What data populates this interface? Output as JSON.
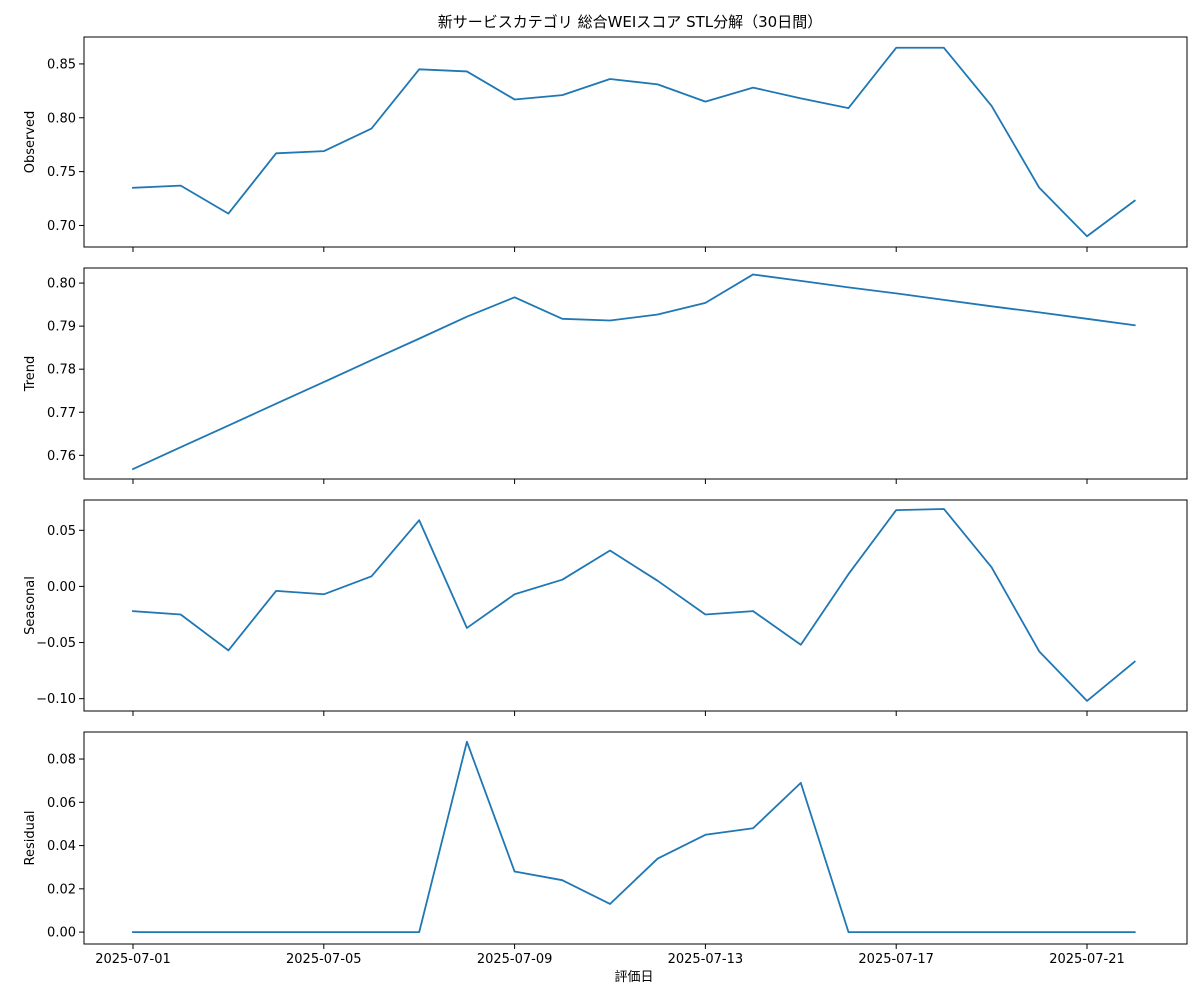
{
  "chart_data": {
    "type": "line",
    "title": "新サービスカテゴリ 総合WEIスコア STL分解（30日間）",
    "xlabel": "評価日",
    "line_color": "#1f77b4",
    "x": [
      "2025-07-01",
      "2025-07-02",
      "2025-07-03",
      "2025-07-04",
      "2025-07-05",
      "2025-07-06",
      "2025-07-07",
      "2025-07-08",
      "2025-07-09",
      "2025-07-10",
      "2025-07-11",
      "2025-07-12",
      "2025-07-13",
      "2025-07-14",
      "2025-07-15",
      "2025-07-16",
      "2025-07-17",
      "2025-07-18",
      "2025-07-19",
      "2025-07-20",
      "2025-07-21",
      "2025-07-22"
    ],
    "x_ticks": [
      "2025-07-01",
      "2025-07-05",
      "2025-07-09",
      "2025-07-13",
      "2025-07-17",
      "2025-07-21"
    ],
    "panels": [
      {
        "ylabel": "Observed",
        "ylim": [
          0.68,
          0.875
        ],
        "yticks": [
          0.7,
          0.75,
          0.8,
          0.85
        ],
        "ytick_labels": [
          "0.70",
          "0.75",
          "0.80",
          "0.85"
        ],
        "values": [
          0.735,
          0.737,
          0.711,
          0.767,
          0.769,
          0.79,
          0.845,
          0.843,
          0.817,
          0.821,
          0.836,
          0.831,
          0.815,
          0.828,
          0.818,
          0.809,
          0.865,
          0.865,
          0.811,
          0.735,
          0.69,
          0.723
        ]
      },
      {
        "ylabel": "Trend",
        "ylim": [
          0.7545,
          0.8035
        ],
        "yticks": [
          0.76,
          0.77,
          0.78,
          0.79,
          0.8
        ],
        "ytick_labels": [
          "0.76",
          "0.77",
          "0.78",
          "0.79",
          "0.80"
        ],
        "values": [
          0.7568,
          0.7619,
          0.7669,
          0.772,
          0.777,
          0.7821,
          0.7871,
          0.7922,
          0.7967,
          0.7917,
          0.7913,
          0.7927,
          0.7954,
          0.802,
          0.8005,
          0.799,
          0.7976,
          0.7961,
          0.7946,
          0.7932,
          0.7917,
          0.7902
        ]
      },
      {
        "ylabel": "Seasonal",
        "ylim": [
          -0.111,
          0.077
        ],
        "yticks": [
          -0.1,
          -0.05,
          0.0,
          0.05
        ],
        "ytick_labels": [
          "−0.10",
          "−0.05",
          "0.00",
          "0.05"
        ],
        "values": [
          -0.022,
          -0.025,
          -0.057,
          -0.004,
          -0.007,
          0.009,
          0.059,
          -0.037,
          -0.007,
          0.006,
          0.032,
          0.005,
          -0.025,
          -0.022,
          -0.052,
          0.011,
          0.068,
          0.069,
          0.017,
          -0.058,
          -0.102,
          -0.067
        ]
      },
      {
        "ylabel": "Residual",
        "ylim": [
          -0.0055,
          0.0925
        ],
        "yticks": [
          0.0,
          0.02,
          0.04,
          0.06,
          0.08
        ],
        "ytick_labels": [
          "0.00",
          "0.02",
          "0.04",
          "0.06",
          "0.08"
        ],
        "values": [
          0,
          0,
          0,
          0,
          0,
          0,
          0,
          0.088,
          0.028,
          0.024,
          0.013,
          0.034,
          0.045,
          0.048,
          0.069,
          0,
          0,
          0,
          0,
          0,
          0,
          0
        ]
      }
    ]
  }
}
